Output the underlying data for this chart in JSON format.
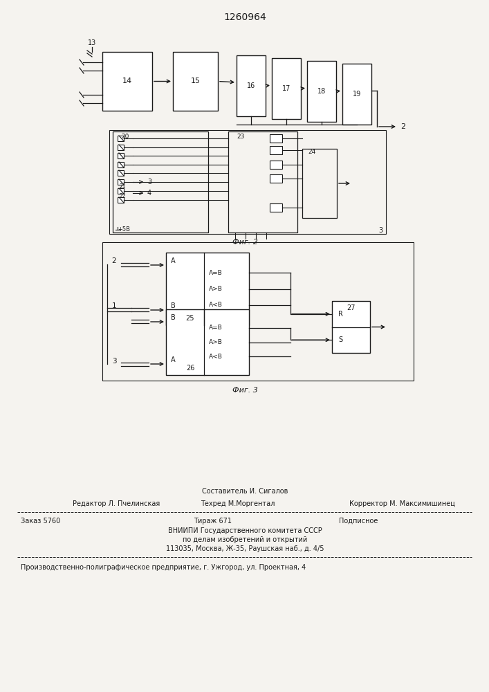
{
  "title": "1260964",
  "bg_color": "#f5f3ef",
  "line_color": "#1a1a1a",
  "fig2_caption": "Фиг. 2",
  "fig3_caption": "Фиг. 3",
  "footer_line0": "Составитель И. Сигалов",
  "footer_line1a": "Редактор Л. Пчелинская",
  "footer_line1b": "Техред М.Моргентал",
  "footer_line1c": "Корректор М. Максимишинец",
  "footer_line2a": "Заказ 5760",
  "footer_line2b": "Тираж 671",
  "footer_line2c": "Подписное",
  "footer_line3": "ВНИИПИ Государственного комитета СССР",
  "footer_line4": "по делам изобретений и открытий",
  "footer_line5": "113035, Москва, Ж-35, Раушская наб., д. 4/5",
  "footer_line6": "Производственно-полиграфическое предприятие, г. Ужгород, ул. Проектная, 4"
}
